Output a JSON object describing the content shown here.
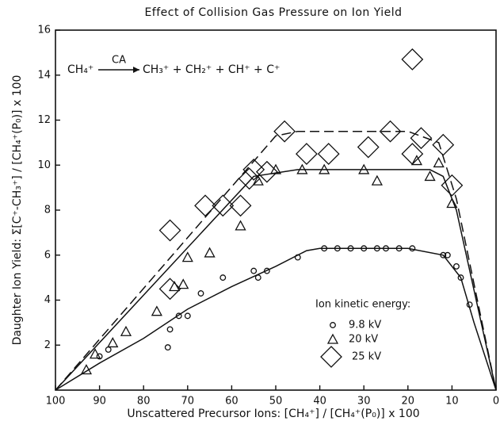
{
  "chart_data": {
    "type": "scatter",
    "title": "Effect of Collision Gas Pressure on Ion Yield",
    "x_label": "Unscattered Precursor Ions:  [CH₄⁺] / [CH₄⁺(P₀)] x 100",
    "y_label": "Daughter Ion Yield:  Σ[C⁺-CH₃⁺] / [CH₄⁺(P₀)] x 100",
    "reaction": {
      "reactant": "CH₄⁺",
      "arrow_label": "CA",
      "products": "CH₃⁺ + CH₂⁺ + CH⁺ + C⁺"
    },
    "legend_title": "Ion kinetic energy:",
    "xlim": [
      100,
      0
    ],
    "ylim": [
      0,
      16
    ],
    "xticks": [
      100,
      90,
      80,
      70,
      60,
      50,
      40,
      30,
      20,
      10,
      0
    ],
    "yticks": [
      2,
      4,
      6,
      8,
      10,
      12,
      14,
      16
    ],
    "series": [
      {
        "name": "9.8 kV",
        "marker": "circle",
        "color": "#111111",
        "line": "solid",
        "x": [
          90,
          88,
          74.5,
          74,
          72,
          70,
          67,
          62,
          55,
          54,
          52,
          45,
          39,
          36,
          33,
          30,
          27,
          25,
          22,
          19,
          12,
          11,
          9,
          8,
          6
        ],
        "y": [
          1.5,
          1.8,
          1.9,
          2.7,
          3.3,
          3.3,
          4.3,
          5.0,
          5.3,
          5.0,
          5.3,
          5.9,
          6.3,
          6.3,
          6.3,
          6.3,
          6.3,
          6.3,
          6.3,
          6.3,
          6.0,
          6.0,
          5.5,
          5.0,
          3.8
        ],
        "fit_x": [
          100,
          90,
          80,
          70,
          60,
          50,
          43,
          40,
          20,
          12,
          8,
          5,
          0
        ],
        "fit_y": [
          0,
          1.2,
          2.3,
          3.6,
          4.6,
          5.5,
          6.2,
          6.3,
          6.3,
          6.0,
          5.0,
          3.0,
          0
        ]
      },
      {
        "name": "20 kV",
        "marker": "triangle",
        "color": "#111111",
        "line": "solid",
        "x": [
          93,
          91,
          87,
          84,
          77,
          73,
          71,
          70,
          65,
          58,
          54,
          50,
          44,
          39,
          30,
          27,
          18,
          15,
          13,
          10
        ],
        "y": [
          0.9,
          1.6,
          2.1,
          2.6,
          3.5,
          4.6,
          4.7,
          5.9,
          6.1,
          7.3,
          9.3,
          9.8,
          9.8,
          9.8,
          9.8,
          9.3,
          10.2,
          9.5,
          10.1,
          8.3
        ],
        "fit_x": [
          100,
          55,
          45,
          15,
          12,
          9,
          0
        ],
        "fit_y": [
          0,
          9.5,
          9.8,
          9.8,
          9.5,
          8.0,
          0
        ]
      },
      {
        "name": "25 kV",
        "marker": "diamond",
        "color": "#111111",
        "line": "dashed",
        "x": [
          74,
          74,
          66,
          62,
          58,
          56,
          55,
          52,
          48,
          43,
          38,
          29,
          24,
          19,
          19,
          17,
          12,
          10
        ],
        "y": [
          4.5,
          7.1,
          8.2,
          8.2,
          8.2,
          9.4,
          9.8,
          9.7,
          11.5,
          10.5,
          10.5,
          10.8,
          11.5,
          14.7,
          10.5,
          11.2,
          10.9,
          9.1
        ],
        "fit_x": [
          100,
          50,
          45,
          20,
          13,
          9,
          0
        ],
        "fit_y": [
          0,
          11.3,
          11.5,
          11.5,
          11.0,
          8.5,
          0
        ]
      }
    ]
  }
}
